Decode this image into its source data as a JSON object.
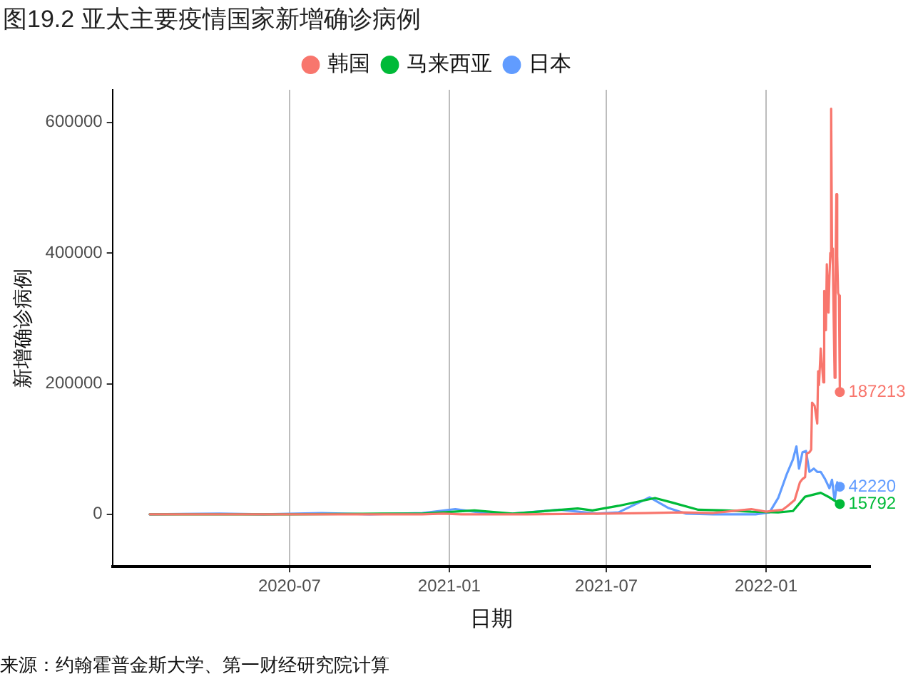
{
  "chart_data": {
    "type": "line",
    "title": "图19.2 亚太主要疫情国家新增确诊病例",
    "xlabel": "日期",
    "ylabel": "新增确诊病例",
    "xlim": [
      "2019-12-10",
      "2022-05-01"
    ],
    "xticks": [
      "2020-07",
      "2021-01",
      "2021-07",
      "2022-01"
    ],
    "ylim": [
      -80000,
      650000
    ],
    "yticks": [
      0,
      200000,
      400000,
      600000
    ],
    "grid": "x",
    "legend": "top",
    "series": [
      {
        "name": "韩国",
        "color": "#f8766d",
        "x": [
          "2020-01-22",
          "2020-03-01",
          "2020-04-01",
          "2020-07-01",
          "2020-09-01",
          "2020-12-01",
          "2020-12-25",
          "2021-01-15",
          "2021-04-01",
          "2021-07-01",
          "2021-08-15",
          "2021-09-25",
          "2021-11-01",
          "2021-12-15",
          "2022-01-01",
          "2022-01-20",
          "2022-01-26",
          "2022-02-03",
          "2022-02-09",
          "2022-02-12",
          "2022-02-15",
          "2022-02-17",
          "2022-02-20",
          "2022-02-22",
          "2022-02-23",
          "2022-02-26",
          "2022-03-01",
          "2022-03-02",
          "2022-03-03",
          "2022-03-05",
          "2022-03-08",
          "2022-03-09",
          "2022-03-10",
          "2022-03-11",
          "2022-03-12",
          "2022-03-14",
          "2022-03-15",
          "2022-03-16",
          "2022-03-17",
          "2022-03-18",
          "2022-03-19",
          "2022-03-21",
          "2022-03-22",
          "2022-03-23",
          "2022-03-24",
          "2022-03-25",
          "2022-03-26",
          "2022-03-27"
        ],
        "values": [
          0,
          0,
          0,
          0,
          0,
          0,
          1000,
          0,
          0,
          1000,
          2000,
          3000,
          2000,
          8000,
          4000,
          7000,
          13000,
          22000,
          49000,
          54000,
          57000,
          93000,
          95000,
          99000,
          171000,
          166000,
          139000,
          219000,
          198000,
          254000,
          202000,
          342000,
          327000,
          282000,
          383000,
          309000,
          362000,
          400000,
          621000,
          407000,
          381000,
          209000,
          354000,
          490000,
          395000,
          339000,
          335000,
          187213
        ]
      },
      {
        "name": "马来西亚",
        "color": "#00ba38",
        "x": [
          "2020-01-22",
          "2020-07-01",
          "2020-10-15",
          "2020-12-01",
          "2021-01-30",
          "2021-03-15",
          "2021-05-29",
          "2021-06-15",
          "2021-07-15",
          "2021-08-26",
          "2021-09-15",
          "2021-10-15",
          "2021-11-15",
          "2021-12-15",
          "2022-01-15",
          "2022-02-01",
          "2022-02-15",
          "2022-03-05",
          "2022-03-15",
          "2022-03-27"
        ],
        "values": [
          0,
          0,
          1000,
          1000,
          6000,
          1000,
          9000,
          6000,
          13000,
          25000,
          18000,
          7000,
          6000,
          4000,
          3000,
          5000,
          27000,
          33000,
          26000,
          15792
        ]
      },
      {
        "name": "日本",
        "color": "#619cff",
        "x": [
          "2020-01-22",
          "2020-04-11",
          "2020-06-01",
          "2020-08-07",
          "2020-10-01",
          "2020-12-01",
          "2021-01-08",
          "2021-02-15",
          "2021-03-15",
          "2021-05-08",
          "2021-06-20",
          "2021-07-15",
          "2021-08-20",
          "2021-09-10",
          "2021-10-01",
          "2021-11-01",
          "2021-12-20",
          "2022-01-05",
          "2022-01-15",
          "2022-01-25",
          "2022-02-01",
          "2022-02-05",
          "2022-02-08",
          "2022-02-12",
          "2022-02-16",
          "2022-02-20",
          "2022-02-25",
          "2022-03-01",
          "2022-03-05",
          "2022-03-10",
          "2022-03-15",
          "2022-03-18",
          "2022-03-21",
          "2022-03-24",
          "2022-03-27"
        ],
        "values": [
          0,
          1000,
          0,
          2000,
          0,
          2000,
          8000,
          1000,
          1000,
          7000,
          1000,
          3000,
          26000,
          10000,
          1000,
          0,
          0,
          3000,
          25000,
          62000,
          84000,
          104000,
          70000,
          95000,
          97000,
          65000,
          70000,
          65000,
          65000,
          54000,
          40000,
          53000,
          21000,
          49000,
          42220
        ]
      }
    ],
    "annotations": [
      {
        "text": "187213",
        "x": "2022-03-27",
        "y": 187213
      },
      {
        "text": "15792",
        "x": "2022-03-27",
        "y": 15792
      },
      {
        "text": "42220",
        "x": "2022-03-27",
        "y": 42220
      },
      "来源：约翰霍普金斯大学、第一财经研究院计算"
    ]
  }
}
